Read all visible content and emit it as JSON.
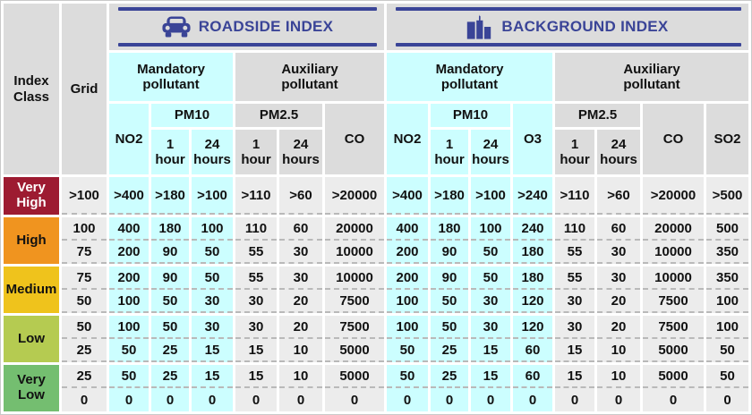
{
  "corner": {
    "index_class": "Index\nClass",
    "grid": "Grid"
  },
  "sections": {
    "roadside_title": "ROADSIDE INDEX",
    "background_title": "BACKGROUND INDEX"
  },
  "labels": {
    "mandatory": "Mandatory\npollutant",
    "auxiliary": "Auxiliary\npollutant",
    "no2": "NO2",
    "pm10": "PM10",
    "pm25": "PM2.5",
    "co": "CO",
    "o3": "O3",
    "so2": "SO2",
    "hour1": "1\nhour",
    "hour24": "24\nhours"
  },
  "colors": {
    "navy": "#3A4497",
    "cyan_cell": "#CCFEFF",
    "gray_cell": "#ECECEC",
    "header_gray": "#DCDCDC",
    "very_high": "#9D1B31",
    "high": "#F0941F",
    "medium": "#EFC31C",
    "low": "#B5CB51",
    "very_low": "#74BE70"
  },
  "value_columns": [
    "Grid",
    "R-NO2",
    "R-PM10-1hour",
    "R-PM10-24hours",
    "R-PM2.5-1hour",
    "R-PM2.5-24hours",
    "R-CO",
    "B-NO2",
    "B-PM10-1hour",
    "B-PM10-24hours",
    "B-O3",
    "B-PM2.5-1hour",
    "B-PM2.5-24hours",
    "B-CO",
    "B-SO2"
  ],
  "classes": [
    {
      "label": "Very\nHigh",
      "color": "#9D1B31",
      "text_color": "#FFFFFF",
      "rows": [
        [
          ">100",
          ">400",
          ">180",
          ">100",
          ">110",
          ">60",
          ">20000",
          ">400",
          ">180",
          ">100",
          ">240",
          ">110",
          ">60",
          ">20000",
          ">500"
        ]
      ]
    },
    {
      "label": "High",
      "color": "#F0941F",
      "text_color": "#111111",
      "rows": [
        [
          "100",
          "400",
          "180",
          "100",
          "110",
          "60",
          "20000",
          "400",
          "180",
          "100",
          "240",
          "110",
          "60",
          "20000",
          "500"
        ],
        [
          "75",
          "200",
          "90",
          "50",
          "55",
          "30",
          "10000",
          "200",
          "90",
          "50",
          "180",
          "55",
          "30",
          "10000",
          "350"
        ]
      ]
    },
    {
      "label": "Medium",
      "color": "#EFC31C",
      "text_color": "#111111",
      "rows": [
        [
          "75",
          "200",
          "90",
          "50",
          "55",
          "30",
          "10000",
          "200",
          "90",
          "50",
          "180",
          "55",
          "30",
          "10000",
          "350"
        ],
        [
          "50",
          "100",
          "50",
          "30",
          "30",
          "20",
          "7500",
          "100",
          "50",
          "30",
          "120",
          "30",
          "20",
          "7500",
          "100"
        ]
      ]
    },
    {
      "label": "Low",
      "color": "#B5CB51",
      "text_color": "#111111",
      "rows": [
        [
          "50",
          "100",
          "50",
          "30",
          "30",
          "20",
          "7500",
          "100",
          "50",
          "30",
          "120",
          "30",
          "20",
          "7500",
          "100"
        ],
        [
          "25",
          "50",
          "25",
          "15",
          "15",
          "10",
          "5000",
          "50",
          "25",
          "15",
          "60",
          "15",
          "10",
          "5000",
          "50"
        ]
      ]
    },
    {
      "label": "Very\nLow",
      "color": "#74BE70",
      "text_color": "#111111",
      "rows": [
        [
          "25",
          "50",
          "25",
          "15",
          "15",
          "10",
          "5000",
          "50",
          "25",
          "15",
          "60",
          "15",
          "10",
          "5000",
          "50"
        ],
        [
          "0",
          "0",
          "0",
          "0",
          "0",
          "0",
          "0",
          "0",
          "0",
          "0",
          "0",
          "0",
          "0",
          "0",
          "0"
        ]
      ]
    }
  ]
}
